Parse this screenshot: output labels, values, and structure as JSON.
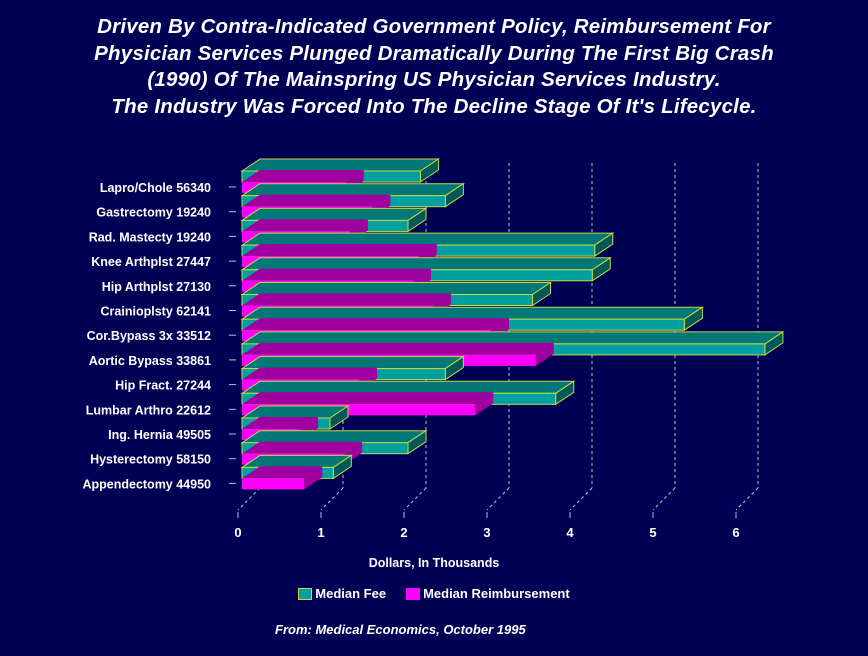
{
  "title_lines": [
    "Driven By Contra-Indicated Government Policy, Reimbursement For",
    "Physician Services Plunged Dramatically During The First Big Crash",
    "(1990) Of The Mainspring US Physician Services Industry.",
    "The Industry Was Forced Into The Decline Stage Of It's Lifecycle."
  ],
  "source": "From: Medical Economics, October 1995",
  "colors": {
    "background": "#000055",
    "fee_front": "#00A0A0",
    "fee_top": "#007878",
    "fee_side": "#005858",
    "reimb_front": "#FF00FF",
    "reimb_side": "#A000A0",
    "edge": "#C8D840",
    "grid": "#C0C0C0"
  },
  "chart_data": {
    "type": "bar",
    "orientation": "horizontal",
    "style": "3d",
    "title": "Driven By Contra-Indicated Government Policy, Reimbursement For Physician Services Plunged Dramatically During The First Big Crash (1990) Of The Mainspring US Physician Services Industry. The Industry Was Forced Into The Decline Stage Of It's Lifecycle.",
    "xlabel": "Dollars, In Thousands",
    "ylabel": "",
    "xlim": [
      0,
      6.5
    ],
    "xticks": [
      "0",
      "1",
      "2",
      "3",
      "4",
      "5",
      "6"
    ],
    "grid": true,
    "legend_position": "bottom",
    "categories": [
      "Lapro/Chole   56340",
      "Gastrectomy   19240",
      "Rad. Mastecty 19240",
      "Knee Arthplst 27447",
      "Hip Arthplst  27130",
      "Crainioplsty  62141",
      "Cor.Bypass 3x 33512",
      "Aortic Bypass 33861",
      "Hip Fract.    27244",
      "Lumbar Arthro 22612",
      "Ing. Hernia   49505",
      "Hysterectomy  58150",
      "Appendectomy  44950"
    ],
    "series": [
      {
        "name": "Median Fee",
        "values": [
          2.15,
          2.45,
          2.0,
          4.25,
          4.22,
          3.5,
          5.33,
          6.3,
          2.45,
          3.78,
          1.06,
          2.0,
          1.1
        ]
      },
      {
        "name": "Median Reimbursement",
        "values": [
          1.25,
          1.57,
          1.3,
          2.13,
          2.06,
          2.3,
          3.0,
          3.54,
          1.41,
          2.81,
          0.7,
          1.23,
          0.75
        ]
      }
    ]
  }
}
